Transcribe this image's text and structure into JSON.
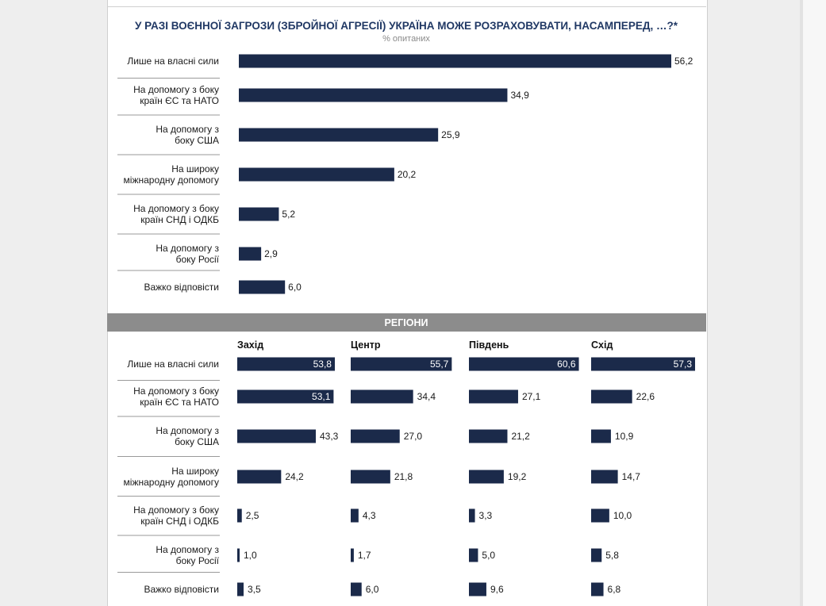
{
  "chart_data": [
    {
      "type": "bar",
      "orientation": "horizontal",
      "title": "У РАЗІ ВОЄННОЇ ЗАГРОЗИ (ЗБРОЙНОЇ АГРЕСІЇ) УКРАЇНА МОЖЕ РОЗРАХОВУВАТИ, НАСАМПЕРЕД, …?*",
      "subtitle": "% опитаних",
      "categories": [
        [
          "Лише на власні сили"
        ],
        [
          "На допомогу з боку",
          "країн ЄС та НАТО"
        ],
        [
          "На допомогу з",
          "боку США"
        ],
        [
          "На широку",
          "міжнародну допомогу"
        ],
        [
          "На допомогу з боку",
          "країн СНД і ОДКБ"
        ],
        [
          "На допомогу з",
          "боку Росії"
        ],
        [
          "Важко відповісти"
        ]
      ],
      "values": [
        56.2,
        34.9,
        25.9,
        20.2,
        5.2,
        2.9,
        6.0
      ],
      "labels": [
        "56,2",
        "34,9",
        "25,9",
        "20,2",
        "5,2",
        "2,9",
        "6,0"
      ],
      "bar_color": "#1b2a4a"
    },
    {
      "type": "bar",
      "orientation": "horizontal",
      "title": "РЕГІОНИ",
      "categories": [
        [
          "Лише на власні сили"
        ],
        [
          "На допомогу з боку",
          "країн ЄС та НАТО"
        ],
        [
          "На допомогу з",
          "боку США"
        ],
        [
          "На широку",
          "міжнародну допомогу"
        ],
        [
          "На допомогу з боку",
          "країн СНД і ОДКБ"
        ],
        [
          "На допомогу з",
          "боку Росії"
        ],
        [
          "Важко відповісти"
        ]
      ],
      "series": [
        {
          "name": "Захід",
          "values": [
            53.8,
            53.1,
            43.3,
            24.2,
            2.5,
            1.0,
            3.5
          ],
          "labels": [
            "53,8",
            "53,1",
            "43,3",
            "24,2",
            "2,5",
            "1,0",
            "3,5"
          ]
        },
        {
          "name": "Центр",
          "values": [
            55.7,
            34.4,
            27.0,
            21.8,
            4.3,
            1.7,
            6.0
          ],
          "labels": [
            "55,7",
            "34,4",
            "27,0",
            "21,8",
            "4,3",
            "1,7",
            "6,0"
          ]
        },
        {
          "name": "Південь",
          "values": [
            60.6,
            27.1,
            21.2,
            19.2,
            3.3,
            5.0,
            9.6
          ],
          "labels": [
            "60,6",
            "27,1",
            "21,2",
            "19,2",
            "3,3",
            "5,0",
            "9,6"
          ]
        },
        {
          "name": "Схід",
          "values": [
            57.3,
            22.6,
            10.9,
            14.7,
            10.0,
            5.8,
            6.8
          ],
          "labels": [
            "57,3",
            "22,6",
            "10,9",
            "14,7",
            "10,0",
            "5,8",
            "6,8"
          ]
        }
      ],
      "bar_color": "#1b2a4a",
      "band_color": "#8c8c8c"
    }
  ]
}
